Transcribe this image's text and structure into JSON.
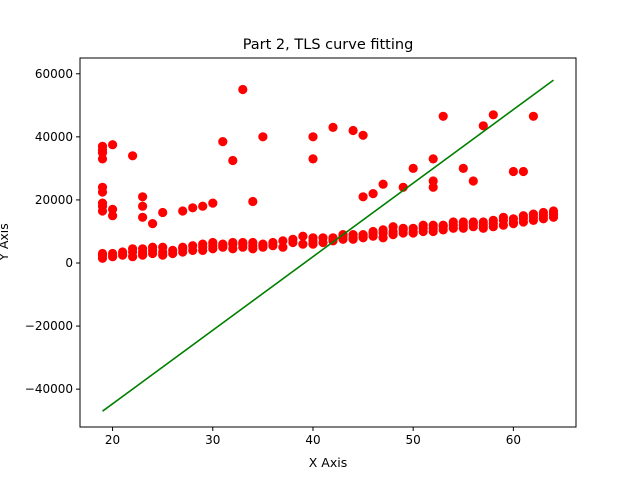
{
  "chart_data": {
    "type": "scatter",
    "title": "Part 2, TLS curve fitting",
    "xlabel": "X Axis",
    "ylabel": "Y Axis",
    "xlim": [
      16.75,
      66.25
    ],
    "ylim": [
      -52000,
      65000
    ],
    "xticks": [
      20,
      30,
      40,
      50,
      60
    ],
    "yticks": [
      -40000,
      -20000,
      0,
      20000,
      40000,
      60000
    ],
    "xtick_labels": [
      "20",
      "30",
      "40",
      "50",
      "60"
    ],
    "ytick_labels": [
      "−40000",
      "−20000",
      "0",
      "20000",
      "40000",
      "60000"
    ],
    "grid": false,
    "series": [
      {
        "kind": "scatter",
        "color": "#ff0000",
        "x": [
          19,
          19,
          19,
          19,
          19,
          19,
          19,
          20,
          20,
          20,
          21,
          21,
          22,
          22,
          22,
          23,
          23,
          23,
          23,
          24,
          24,
          24,
          25,
          25,
          25,
          26,
          26,
          27,
          27,
          27,
          28,
          28,
          29,
          29,
          29,
          30,
          30,
          30,
          31,
          31,
          31,
          32,
          32,
          32,
          33,
          33,
          33,
          34,
          34,
          34,
          35,
          35,
          35,
          36,
          36,
          37,
          37,
          38,
          38,
          39,
          39,
          40,
          40,
          40,
          41,
          41,
          42,
          42,
          42,
          43,
          43,
          43,
          44,
          44,
          44,
          45,
          45,
          45,
          45,
          46,
          46,
          46,
          47,
          47,
          47,
          48,
          48,
          48,
          49,
          49,
          49,
          50,
          50,
          50,
          51,
          51,
          51,
          52,
          52,
          52,
          52,
          52,
          53,
          53,
          53,
          54,
          54,
          54,
          55,
          55,
          55,
          56,
          56,
          56,
          57,
          57,
          57,
          58,
          58,
          58,
          59,
          59,
          59,
          60,
          60,
          60,
          61,
          61,
          61,
          62,
          62,
          62,
          63,
          63,
          63,
          64,
          64,
          64,
          19,
          19,
          19,
          19,
          19,
          20,
          20,
          22,
          23,
          23,
          24,
          25,
          27,
          28,
          29,
          30,
          31,
          32,
          33,
          34,
          35,
          40,
          40,
          42,
          44,
          45,
          46,
          47,
          49,
          50,
          52,
          53,
          55,
          56,
          57,
          58,
          60,
          61,
          62
        ],
        "y": [
          1500,
          2500,
          3000,
          16500,
          18000,
          19000,
          22500,
          2000,
          3000,
          15000,
          2500,
          3500,
          2000,
          3500,
          4500,
          2500,
          3500,
          4500,
          14500,
          3000,
          4000,
          5000,
          2500,
          3500,
          5000,
          3000,
          4000,
          3500,
          4500,
          5000,
          4000,
          5500,
          4000,
          5000,
          6000,
          4500,
          5500,
          6500,
          5000,
          6000,
          5500,
          4500,
          6000,
          6500,
          5000,
          6000,
          6500,
          5500,
          4500,
          6500,
          5000,
          5500,
          6000,
          5500,
          6500,
          5000,
          7000,
          6500,
          7500,
          6000,
          8500,
          6000,
          7000,
          8000,
          6500,
          8000,
          7000,
          7500,
          8000,
          7500,
          8500,
          9000,
          7500,
          8000,
          9000,
          8000,
          8500,
          9000,
          21000,
          8500,
          9500,
          10000,
          8000,
          9500,
          10500,
          9000,
          10000,
          11500,
          9500,
          10500,
          11000,
          9500,
          10000,
          11000,
          10000,
          11000,
          12000,
          10000,
          11000,
          12000,
          24000,
          26000,
          10500,
          11500,
          12000,
          11000,
          12000,
          13000,
          11000,
          12000,
          13000,
          11500,
          12500,
          13000,
          11000,
          12000,
          13000,
          11500,
          12500,
          13500,
          12000,
          13500,
          14500,
          12500,
          13000,
          14000,
          13000,
          14000,
          15000,
          13500,
          14500,
          15500,
          14000,
          15000,
          16000,
          14500,
          15500,
          16500,
          24000,
          33000,
          35000,
          36000,
          37000,
          17000,
          37500,
          34000,
          18000,
          21000,
          12500,
          16000,
          16500,
          17500,
          18000,
          19000,
          38500,
          32500,
          55000,
          19500,
          40000,
          40000,
          33000,
          43000,
          42000,
          40500,
          22000,
          25000,
          24000,
          30000,
          33000,
          46500,
          30000,
          26000,
          43500,
          47000,
          29000,
          29000,
          46500
        ]
      },
      {
        "kind": "line",
        "color": "#008000",
        "x": [
          19,
          64
        ],
        "y": [
          -47000,
          58000
        ]
      }
    ]
  }
}
